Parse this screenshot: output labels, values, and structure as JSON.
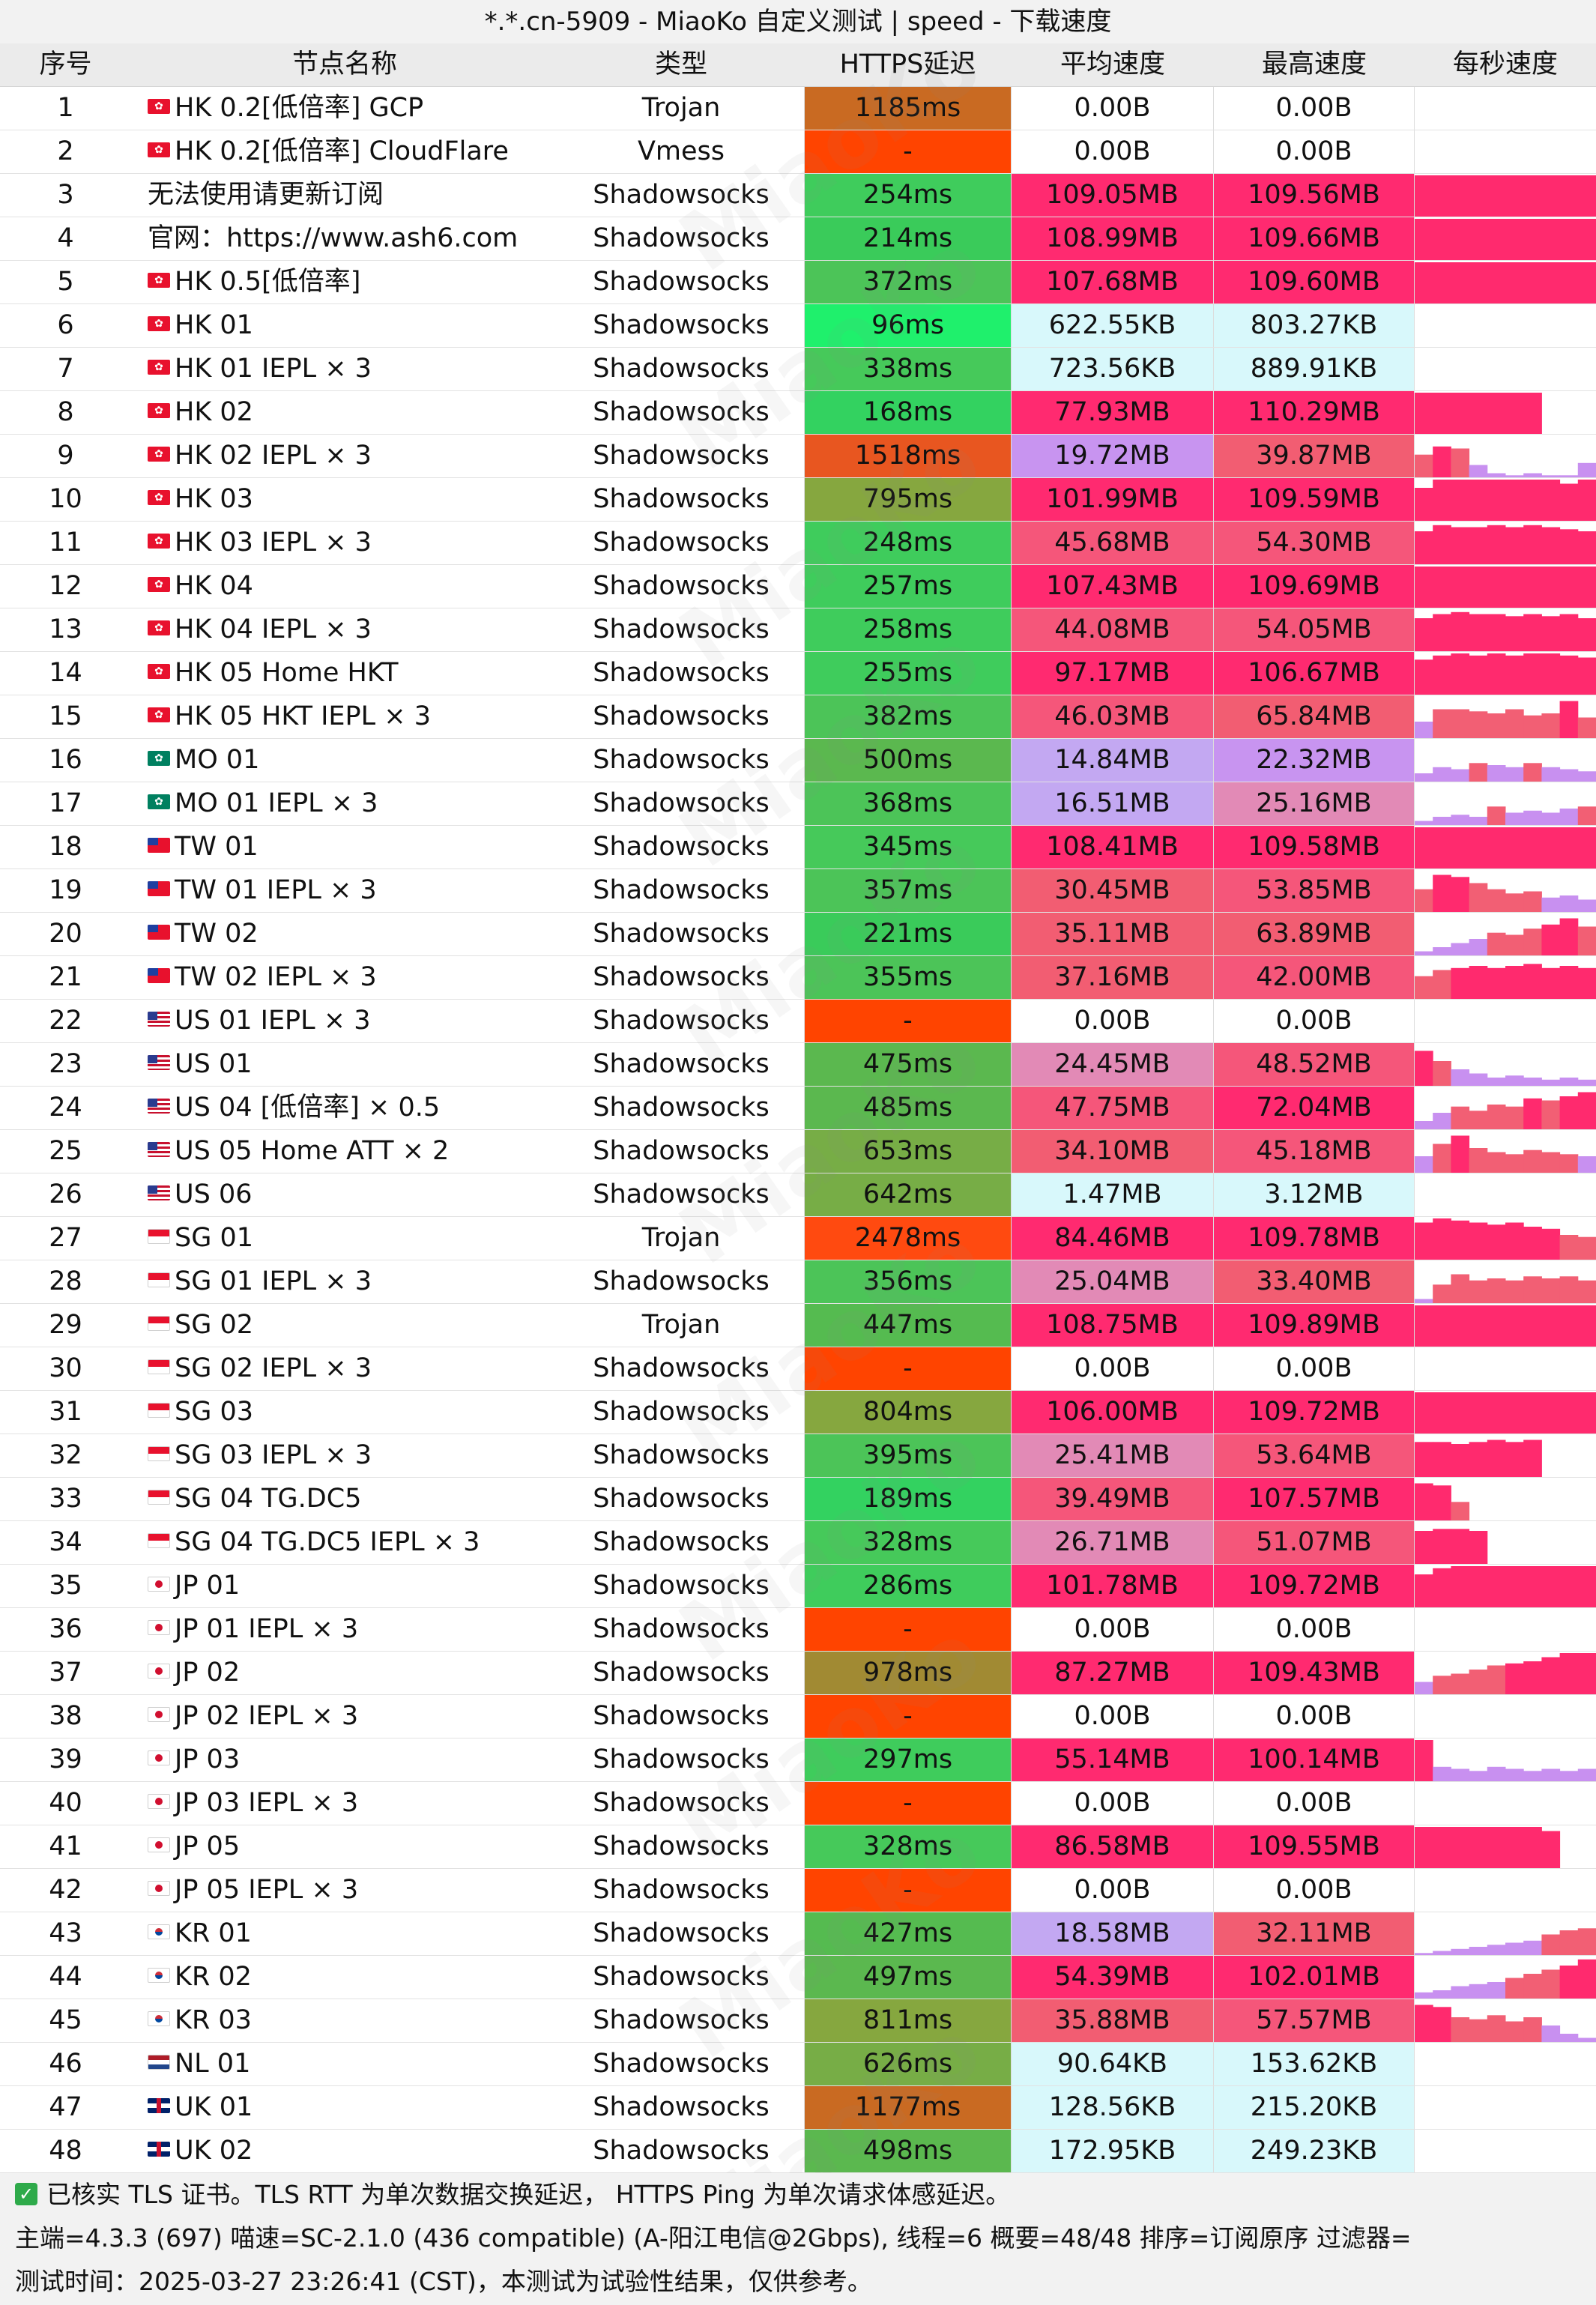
{
  "title": "*.*.cn-5909 - MiaoKo 自定义测试 | speed - 下载速度",
  "headers": {
    "idx": "序号",
    "name": "节点名称",
    "type": "类型",
    "latency": "HTTPS延迟",
    "avg": "平均速度",
    "max": "最高速度",
    "per_sec": "每秒速度"
  },
  "watermark": "MiaoKo",
  "colors": {
    "speed_high": "#ff2a6e",
    "speed_mid": "#f25f74",
    "speed_low": "#c890f0",
    "speed_tiny": "#d8f8fb",
    "lat_good": "#3dcc5a",
    "lat_ok": "#8aa840",
    "lat_slow": "#d2671d",
    "lat_fail": "#ff4200"
  },
  "rows": [
    {
      "idx": "1",
      "flag": "hk",
      "name": "HK 0.2[低倍率] GCP",
      "type": "Trojan",
      "latency": "1185ms",
      "lat_bg": "#c96a22",
      "avg": "0.00B",
      "avg_bg": "#ffffff",
      "max": "0.00B",
      "max_bg": "#ffffff",
      "spark": []
    },
    {
      "idx": "2",
      "flag": "hk",
      "name": "HK 0.2[低倍率] CloudFlare",
      "type": "Vmess",
      "latency": "-",
      "lat_bg": "#ff4400",
      "avg": "0.00B",
      "avg_bg": "#ffffff",
      "max": "0.00B",
      "max_bg": "#ffffff",
      "spark": []
    },
    {
      "idx": "3",
      "flag": "",
      "name": "无法使用请更新订阅",
      "type": "Shadowsocks",
      "latency": "254ms",
      "lat_bg": "#3fcc5c",
      "avg": "109.05MB",
      "avg_bg": "#ff2a70",
      "max": "109.56MB",
      "max_bg": "#ff2a70",
      "spark": [
        1,
        1,
        1,
        1,
        1,
        1,
        1,
        1,
        1,
        1
      ]
    },
    {
      "idx": "4",
      "flag": "",
      "name": "官网：https://www.ash6.com",
      "type": "Shadowsocks",
      "latency": "214ms",
      "lat_bg": "#3acb5a",
      "avg": "108.99MB",
      "avg_bg": "#ff2a70",
      "max": "109.66MB",
      "max_bg": "#ff2a70",
      "spark": [
        1,
        1,
        1,
        1,
        1,
        1,
        1,
        1,
        1,
        1
      ]
    },
    {
      "idx": "5",
      "flag": "hk",
      "name": "HK 0.5[低倍率]",
      "type": "Shadowsocks",
      "latency": "372ms",
      "lat_bg": "#4cc458",
      "avg": "107.68MB",
      "avg_bg": "#ff2a70",
      "max": "109.60MB",
      "max_bg": "#ff2a70",
      "spark": [
        1,
        1,
        1,
        1,
        1,
        1,
        1,
        1,
        1,
        1
      ]
    },
    {
      "idx": "6",
      "flag": "hk",
      "name": "HK 01",
      "type": "Shadowsocks",
      "latency": "96ms",
      "lat_bg": "#1ff06c",
      "avg": "622.55KB",
      "avg_bg": "#d8f8fb",
      "max": "803.27KB",
      "max_bg": "#d8f8fb",
      "spark": []
    },
    {
      "idx": "7",
      "flag": "hk",
      "name": "HK 01 IEPL × 3",
      "type": "Shadowsocks",
      "latency": "338ms",
      "lat_bg": "#46c95a",
      "avg": "723.56KB",
      "avg_bg": "#d8f8fb",
      "max": "889.91KB",
      "max_bg": "#d8f8fb",
      "spark": []
    },
    {
      "idx": "8",
      "flag": "hk",
      "name": "HK 02",
      "type": "Shadowsocks",
      "latency": "168ms",
      "lat_bg": "#33d260",
      "avg": "77.93MB",
      "avg_bg": "#ff2a70",
      "max": "110.29MB",
      "max_bg": "#ff2a70",
      "spark": [
        1,
        1,
        1,
        1,
        1,
        1,
        1,
        0,
        0,
        0
      ]
    },
    {
      "idx": "9",
      "flag": "hk",
      "name": "HK 02 IEPL × 3",
      "type": "Shadowsocks",
      "latency": "1518ms",
      "lat_bg": "#e85620",
      "avg": "19.72MB",
      "avg_bg": "#c894f0",
      "max": "39.87MB",
      "max_bg": "#f25d72",
      "spark": [
        0.55,
        0.75,
        0.7,
        0.3,
        0.1,
        0.05,
        0.1,
        0.05,
        0.05,
        0.35
      ]
    },
    {
      "idx": "10",
      "flag": "hk",
      "name": "HK 03",
      "type": "Shadowsocks",
      "latency": "795ms",
      "lat_bg": "#86a73f",
      "avg": "101.99MB",
      "avg_bg": "#ff2a70",
      "max": "109.59MB",
      "max_bg": "#ff2a70",
      "spark": [
        0.8,
        1,
        1,
        1,
        1,
        1,
        1,
        1,
        0.9,
        1
      ]
    },
    {
      "idx": "11",
      "flag": "hk",
      "name": "HK 03 IEPL × 3",
      "type": "Shadowsocks",
      "latency": "248ms",
      "lat_bg": "#3fcc5c",
      "avg": "45.68MB",
      "avg_bg": "#f5567a",
      "max": "54.30MB",
      "max_bg": "#f5567a",
      "spark": [
        0.8,
        0.95,
        0.9,
        0.9,
        0.95,
        0.9,
        0.95,
        0.9,
        0.85,
        0.8
      ]
    },
    {
      "idx": "12",
      "flag": "hk",
      "name": "HK 04",
      "type": "Shadowsocks",
      "latency": "257ms",
      "lat_bg": "#3fcc5c",
      "avg": "107.43MB",
      "avg_bg": "#ff2a70",
      "max": "109.69MB",
      "max_bg": "#ff2a70",
      "spark": [
        1,
        1,
        1,
        1,
        1,
        1,
        1,
        1,
        1,
        1
      ]
    },
    {
      "idx": "13",
      "flag": "hk",
      "name": "HK 04 IEPL × 3",
      "type": "Shadowsocks",
      "latency": "258ms",
      "lat_bg": "#3fcc5c",
      "avg": "44.08MB",
      "avg_bg": "#f5567a",
      "max": "54.05MB",
      "max_bg": "#f5567a",
      "spark": [
        0.8,
        0.9,
        0.95,
        0.9,
        0.9,
        0.85,
        0.9,
        0.85,
        0.9,
        0.8
      ]
    },
    {
      "idx": "14",
      "flag": "hk",
      "name": "HK 05 Home HKT",
      "type": "Shadowsocks",
      "latency": "255ms",
      "lat_bg": "#3fcc5c",
      "avg": "97.17MB",
      "avg_bg": "#ff2a70",
      "max": "106.67MB",
      "max_bg": "#ff2a70",
      "spark": [
        0.85,
        0.95,
        1,
        0.95,
        1,
        0.95,
        1,
        1,
        0.95,
        0.9
      ]
    },
    {
      "idx": "15",
      "flag": "hk",
      "name": "HK 05 HKT IEPL × 3",
      "type": "Shadowsocks",
      "latency": "382ms",
      "lat_bg": "#4cc458",
      "avg": "46.03MB",
      "avg_bg": "#f5567a",
      "max": "65.84MB",
      "max_bg": "#f25d72",
      "spark": [
        0.4,
        0.7,
        0.7,
        0.65,
        0.6,
        0.7,
        0.55,
        0.6,
        0.9,
        0.5
      ]
    },
    {
      "idx": "16",
      "flag": "mo",
      "name": "MO 01",
      "type": "Shadowsocks",
      "latency": "500ms",
      "lat_bg": "#5bb84f",
      "avg": "14.84MB",
      "avg_bg": "#c3a8f2",
      "max": "22.32MB",
      "max_bg": "#c894f0",
      "spark": [
        0.2,
        0.35,
        0.3,
        0.45,
        0.4,
        0.35,
        0.45,
        0.35,
        0.3,
        0.25
      ]
    },
    {
      "idx": "17",
      "flag": "mo",
      "name": "MO 01 IEPL × 3",
      "type": "Shadowsocks",
      "latency": "368ms",
      "lat_bg": "#4cc458",
      "avg": "16.51MB",
      "avg_bg": "#c3a8f2",
      "max": "25.16MB",
      "max_bg": "#e28ab6",
      "spark": [
        0.1,
        0.2,
        0.25,
        0.2,
        0.45,
        0.3,
        0.35,
        0.3,
        0.4,
        0.45
      ]
    },
    {
      "idx": "18",
      "flag": "tw",
      "name": "TW 01",
      "type": "Shadowsocks",
      "latency": "345ms",
      "lat_bg": "#46c95a",
      "avg": "108.41MB",
      "avg_bg": "#ff2a70",
      "max": "109.58MB",
      "max_bg": "#ff2a70",
      "spark": [
        1,
        1,
        1,
        1,
        1,
        1,
        1,
        1,
        1,
        1
      ]
    },
    {
      "idx": "19",
      "flag": "tw",
      "name": "TW 01 IEPL × 3",
      "type": "Shadowsocks",
      "latency": "357ms",
      "lat_bg": "#4cc458",
      "avg": "30.45MB",
      "avg_bg": "#f25d72",
      "max": "53.85MB",
      "max_bg": "#f5567a",
      "spark": [
        0.55,
        0.9,
        0.85,
        0.7,
        0.55,
        0.45,
        0.5,
        0.35,
        0.4,
        0.3
      ]
    },
    {
      "idx": "20",
      "flag": "tw",
      "name": "TW 02",
      "type": "Shadowsocks",
      "latency": "221ms",
      "lat_bg": "#3acb5a",
      "avg": "35.11MB",
      "avg_bg": "#f25d72",
      "max": "63.89MB",
      "max_bg": "#f25d72",
      "spark": [
        0.1,
        0.2,
        0.3,
        0.4,
        0.55,
        0.5,
        0.65,
        0.75,
        0.9,
        0.7
      ]
    },
    {
      "idx": "21",
      "flag": "tw",
      "name": "TW 02 IEPL × 3",
      "type": "Shadowsocks",
      "latency": "355ms",
      "lat_bg": "#4cc458",
      "avg": "37.16MB",
      "avg_bg": "#f25d72",
      "max": "42.00MB",
      "max_bg": "#f5567a",
      "spark": [
        0.55,
        0.7,
        0.75,
        0.8,
        0.75,
        0.8,
        0.85,
        0.75,
        0.8,
        0.75
      ]
    },
    {
      "idx": "22",
      "flag": "us",
      "name": "US 01 IEPL × 3",
      "type": "Shadowsocks",
      "latency": "-",
      "lat_bg": "#ff4400",
      "avg": "0.00B",
      "avg_bg": "#ffffff",
      "max": "0.00B",
      "max_bg": "#ffffff",
      "spark": []
    },
    {
      "idx": "23",
      "flag": "us",
      "name": "US 01",
      "type": "Shadowsocks",
      "latency": "475ms",
      "lat_bg": "#5bb84f",
      "avg": "24.45MB",
      "avg_bg": "#e28ab6",
      "max": "48.52MB",
      "max_bg": "#f5567a",
      "spark": [
        0.85,
        0.6,
        0.4,
        0.3,
        0.2,
        0.25,
        0.2,
        0.15,
        0.2,
        0.15
      ]
    },
    {
      "idx": "24",
      "flag": "us",
      "name": "US 04 [低倍率] × 0.5",
      "type": "Shadowsocks",
      "latency": "485ms",
      "lat_bg": "#5bb84f",
      "avg": "47.75MB",
      "avg_bg": "#f5567a",
      "max": "72.04MB",
      "max_bg": "#ff2a70",
      "spark": [
        0.2,
        0.4,
        0.55,
        0.45,
        0.6,
        0.55,
        0.75,
        0.7,
        0.8,
        0.9
      ]
    },
    {
      "idx": "25",
      "flag": "us",
      "name": "US 05 Home ATT × 2",
      "type": "Shadowsocks",
      "latency": "653ms",
      "lat_bg": "#77ad46",
      "avg": "34.10MB",
      "avg_bg": "#f25d72",
      "max": "45.18MB",
      "max_bg": "#f5567a",
      "spark": [
        0.4,
        0.7,
        0.9,
        0.6,
        0.5,
        0.45,
        0.55,
        0.5,
        0.45,
        0.4
      ]
    },
    {
      "idx": "26",
      "flag": "us",
      "name": "US 06",
      "type": "Shadowsocks",
      "latency": "642ms",
      "lat_bg": "#77ad46",
      "avg": "1.47MB",
      "avg_bg": "#d8f8fb",
      "max": "3.12MB",
      "max_bg": "#d8f8fb",
      "spark": []
    },
    {
      "idx": "27",
      "flag": "sg",
      "name": "SG 01",
      "type": "Trojan",
      "latency": "2478ms",
      "lat_bg": "#ff4a10",
      "avg": "84.46MB",
      "avg_bg": "#ff2a70",
      "max": "109.78MB",
      "max_bg": "#ff2a70",
      "spark": [
        0.9,
        1,
        0.95,
        0.9,
        0.85,
        0.9,
        0.8,
        0.75,
        0.6,
        0.55
      ]
    },
    {
      "idx": "28",
      "flag": "sg",
      "name": "SG 01 IEPL × 3",
      "type": "Shadowsocks",
      "latency": "356ms",
      "lat_bg": "#4cc458",
      "avg": "25.04MB",
      "avg_bg": "#e28ab6",
      "max": "33.40MB",
      "max_bg": "#f25d72",
      "spark": [
        0.1,
        0.45,
        0.7,
        0.55,
        0.6,
        0.55,
        0.65,
        0.6,
        0.65,
        0.55
      ]
    },
    {
      "idx": "29",
      "flag": "sg",
      "name": "SG 02",
      "type": "Trojan",
      "latency": "447ms",
      "lat_bg": "#55bb50",
      "avg": "108.75MB",
      "avg_bg": "#ff2a70",
      "max": "109.89MB",
      "max_bg": "#ff2a70",
      "spark": [
        1,
        1,
        1,
        1,
        1,
        1,
        1,
        1,
        1,
        1
      ]
    },
    {
      "idx": "30",
      "flag": "sg",
      "name": "SG 02 IEPL × 3",
      "type": "Shadowsocks",
      "latency": "-",
      "lat_bg": "#ff4400",
      "avg": "0.00B",
      "avg_bg": "#ffffff",
      "max": "0.00B",
      "max_bg": "#ffffff",
      "spark": []
    },
    {
      "idx": "31",
      "flag": "sg",
      "name": "SG 03",
      "type": "Shadowsocks",
      "latency": "804ms",
      "lat_bg": "#86a73f",
      "avg": "106.00MB",
      "avg_bg": "#ff2a70",
      "max": "109.72MB",
      "max_bg": "#ff2a70",
      "spark": [
        1,
        1,
        1,
        1,
        1,
        1,
        1,
        1,
        1,
        1
      ]
    },
    {
      "idx": "32",
      "flag": "sg",
      "name": "SG 03 IEPL × 3",
      "type": "Shadowsocks",
      "latency": "395ms",
      "lat_bg": "#4cc458",
      "avg": "25.41MB",
      "avg_bg": "#e28ab6",
      "max": "53.64MB",
      "max_bg": "#f5567a",
      "spark": [
        0.85,
        0.85,
        0.8,
        0.85,
        0.9,
        0.85,
        0.9,
        0,
        0,
        0
      ]
    },
    {
      "idx": "33",
      "flag": "sg",
      "name": "SG 04 TG.DC5",
      "type": "Shadowsocks",
      "latency": "189ms",
      "lat_bg": "#33d260",
      "avg": "39.49MB",
      "avg_bg": "#f5567a",
      "max": "107.57MB",
      "max_bg": "#ff2a70",
      "spark": [
        0.9,
        0.85,
        0.45,
        0,
        0,
        0,
        0,
        0,
        0,
        0
      ]
    },
    {
      "idx": "34",
      "flag": "sg",
      "name": "SG 04 TG.DC5 IEPL × 3",
      "type": "Shadowsocks",
      "latency": "328ms",
      "lat_bg": "#46c95a",
      "avg": "26.71MB",
      "avg_bg": "#e28ab6",
      "max": "51.07MB",
      "max_bg": "#f5567a",
      "spark": [
        0.8,
        0.85,
        0.85,
        0.8,
        0,
        0,
        0,
        0,
        0,
        0
      ]
    },
    {
      "idx": "35",
      "flag": "jp",
      "name": "JP 01",
      "type": "Shadowsocks",
      "latency": "286ms",
      "lat_bg": "#3fcc5c",
      "avg": "101.78MB",
      "avg_bg": "#ff2a70",
      "max": "109.72MB",
      "max_bg": "#ff2a70",
      "spark": [
        0.8,
        0.95,
        1,
        1,
        1,
        1,
        1,
        1,
        1,
        1
      ]
    },
    {
      "idx": "36",
      "flag": "jp",
      "name": "JP 01 IEPL × 3",
      "type": "Shadowsocks",
      "latency": "-",
      "lat_bg": "#ff4400",
      "avg": "0.00B",
      "avg_bg": "#ffffff",
      "max": "0.00B",
      "max_bg": "#ffffff",
      "spark": []
    },
    {
      "idx": "37",
      "flag": "jp",
      "name": "JP 02",
      "type": "Shadowsocks",
      "latency": "978ms",
      "lat_bg": "#a18a33",
      "avg": "87.27MB",
      "avg_bg": "#ff2a70",
      "max": "109.43MB",
      "max_bg": "#ff2a70",
      "spark": [
        0.3,
        0.45,
        0.5,
        0.6,
        0.7,
        0.75,
        0.8,
        0.9,
        1,
        1
      ]
    },
    {
      "idx": "38",
      "flag": "jp",
      "name": "JP 02 IEPL × 3",
      "type": "Shadowsocks",
      "latency": "-",
      "lat_bg": "#ff4400",
      "avg": "0.00B",
      "avg_bg": "#ffffff",
      "max": "0.00B",
      "max_bg": "#ffffff",
      "spark": []
    },
    {
      "idx": "39",
      "flag": "jp",
      "name": "JP 03",
      "type": "Shadowsocks",
      "latency": "297ms",
      "lat_bg": "#3fcc5c",
      "avg": "55.14MB",
      "avg_bg": "#ff2a70",
      "max": "100.14MB",
      "max_bg": "#ff2a70",
      "spark": [
        1,
        0.35,
        0.3,
        0.25,
        0.35,
        0.3,
        0.25,
        0.3,
        0.25,
        0.3
      ]
    },
    {
      "idx": "40",
      "flag": "jp",
      "name": "JP 03 IEPL × 3",
      "type": "Shadowsocks",
      "latency": "-",
      "lat_bg": "#ff4400",
      "avg": "0.00B",
      "avg_bg": "#ffffff",
      "max": "0.00B",
      "max_bg": "#ffffff",
      "spark": []
    },
    {
      "idx": "41",
      "flag": "jp",
      "name": "JP 05",
      "type": "Shadowsocks",
      "latency": "328ms",
      "lat_bg": "#46c95a",
      "avg": "86.58MB",
      "avg_bg": "#ff2a70",
      "max": "109.55MB",
      "max_bg": "#ff2a70",
      "spark": [
        1,
        1,
        1,
        1,
        1,
        1,
        1,
        0.9,
        0,
        0
      ]
    },
    {
      "idx": "42",
      "flag": "jp",
      "name": "JP 05 IEPL × 3",
      "type": "Shadowsocks",
      "latency": "-",
      "lat_bg": "#ff4400",
      "avg": "0.00B",
      "avg_bg": "#ffffff",
      "max": "0.00B",
      "max_bg": "#ffffff",
      "spark": []
    },
    {
      "idx": "43",
      "flag": "kr",
      "name": "KR 01",
      "type": "Shadowsocks",
      "latency": "427ms",
      "lat_bg": "#55bb50",
      "avg": "18.58MB",
      "avg_bg": "#c3a8f2",
      "max": "32.11MB",
      "max_bg": "#f25d72",
      "spark": [
        0.05,
        0.1,
        0.15,
        0.2,
        0.25,
        0.3,
        0.35,
        0.5,
        0.6,
        0.65
      ]
    },
    {
      "idx": "44",
      "flag": "kr",
      "name": "KR 02",
      "type": "Shadowsocks",
      "latency": "497ms",
      "lat_bg": "#5bb84f",
      "avg": "54.39MB",
      "avg_bg": "#ff2a70",
      "max": "102.01MB",
      "max_bg": "#ff2a70",
      "spark": [
        0.15,
        0.2,
        0.3,
        0.35,
        0.4,
        0.5,
        0.6,
        0.7,
        0.8,
        0.95
      ]
    },
    {
      "idx": "45",
      "flag": "kr",
      "name": "KR 03",
      "type": "Shadowsocks",
      "latency": "811ms",
      "lat_bg": "#86a73f",
      "avg": "35.88MB",
      "avg_bg": "#f25d72",
      "max": "57.57MB",
      "max_bg": "#f5567a",
      "spark": [
        0.9,
        0.85,
        0.6,
        0.55,
        0.65,
        0.5,
        0.6,
        0.4,
        0.2,
        0.1
      ]
    },
    {
      "idx": "46",
      "flag": "nl",
      "name": "NL 01",
      "type": "Shadowsocks",
      "latency": "626ms",
      "lat_bg": "#77ad46",
      "avg": "90.64KB",
      "avg_bg": "#d8f8fb",
      "max": "153.62KB",
      "max_bg": "#d8f8fb",
      "spark": []
    },
    {
      "idx": "47",
      "flag": "uk",
      "name": "UK 01",
      "type": "Shadowsocks",
      "latency": "1177ms",
      "lat_bg": "#c96a22",
      "avg": "128.56KB",
      "avg_bg": "#d8f8fb",
      "max": "215.20KB",
      "max_bg": "#d8f8fb",
      "spark": []
    },
    {
      "idx": "48",
      "flag": "uk",
      "name": "UK 02",
      "type": "Shadowsocks",
      "latency": "498ms",
      "lat_bg": "#5bb84f",
      "avg": "172.95KB",
      "avg_bg": "#d8f8fb",
      "max": "249.23KB",
      "max_bg": "#d8f8fb",
      "spark": []
    }
  ],
  "footer": {
    "line1": "已核实 TLS 证书。TLS RTT 为单次数据交换延迟， HTTPS Ping 为单次请求体感延迟。",
    "line2": "主端=4.3.3 (697) 喵速=SC-2.1.0 (436 compatible) (A-阳江电信@2Gbps), 线程=6 概要=48/48 排序=订阅原序 过滤器=",
    "line3": "测试时间：2025-03-27 23:26:41 (CST)，本测试为试验性结果，仅供参考。"
  }
}
